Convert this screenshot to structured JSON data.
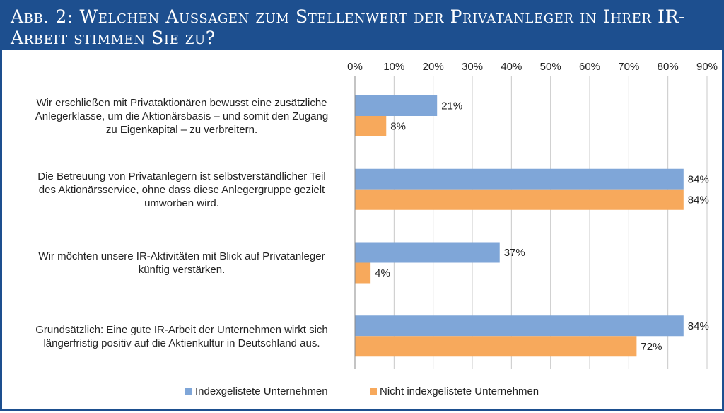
{
  "title": "Abb. 2: Welchen Aussagen zum Stellenwert der Privatanleger in Ihrer IR-Arbeit stimmen Sie zu?",
  "chart_data": {
    "type": "bar",
    "orientation": "horizontal",
    "categories": [
      [
        "Wir erschließen mit Privataktionären bewusst eine zusätzliche",
        "Anlegerklasse, um die Aktionärsbasis – und somit den Zugang",
        "zu Eigenkapital – zu verbreitern."
      ],
      [
        "Die Betreuung von Privatanlegern ist selbstverständlicher Teil",
        "des Aktionärsservice, ohne dass diese Anlegergruppe gezielt",
        "umworben wird."
      ],
      [
        "Wir möchten unsere IR-Aktivitäten mit Blick auf Privatanleger",
        "künftig verstärken."
      ],
      [
        "Grundsätzlich: Eine gute IR-Arbeit der Unternehmen wirkt sich",
        "längerfristig positiv auf die Aktienkultur in Deutschland aus."
      ]
    ],
    "series": [
      {
        "name": "Indexgelistete Unternehmen",
        "color": "#7fa6d8",
        "values": [
          21,
          84,
          37,
          84
        ]
      },
      {
        "name": "Nicht indexgelistete Unternehmen",
        "color": "#f7a95c",
        "values": [
          8,
          84,
          4,
          72
        ]
      }
    ],
    "xlim": [
      0,
      90
    ],
    "xticks": [
      0,
      10,
      20,
      30,
      40,
      50,
      60,
      70,
      80,
      90
    ],
    "tick_suffix": "%",
    "value_suffix": "%",
    "xaxis_position": "top",
    "gridlines": true,
    "legend_position": "bottom"
  }
}
